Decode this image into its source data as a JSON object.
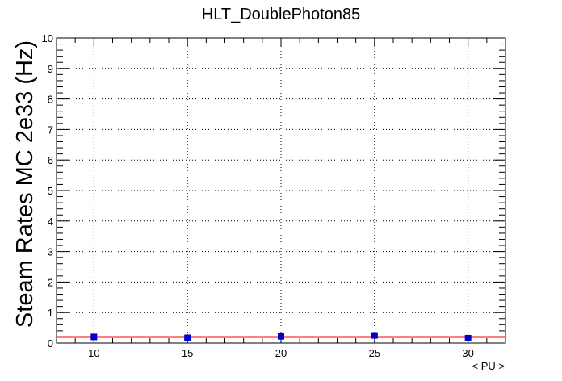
{
  "chart_data": {
    "type": "scatter",
    "title": "HLT_DoublePhoton85",
    "xlabel": "< PU >",
    "ylabel": "Steam Rates MC 2e33 (Hz)",
    "xlim": [
      8,
      32
    ],
    "ylim": [
      0,
      10
    ],
    "x_ticks": [
      10,
      15,
      20,
      25,
      30
    ],
    "x_tick_labels": [
      "10",
      "15",
      "20",
      "25",
      "30"
    ],
    "y_ticks": [
      0,
      1,
      2,
      3,
      4,
      5,
      6,
      7,
      8,
      9,
      10
    ],
    "y_tick_labels": [
      "0",
      "1",
      "2",
      "3",
      "4",
      "5",
      "6",
      "7",
      "8",
      "9",
      "10"
    ],
    "grid": true,
    "series": [
      {
        "x": [
          10,
          15,
          20,
          25,
          30
        ],
        "y": [
          0.2,
          0.17,
          0.22,
          0.25,
          0.16
        ],
        "marker": "square",
        "color": "#0000cc"
      }
    ],
    "fit_line": {
      "y": 0.2,
      "color": "#ff0000"
    }
  }
}
